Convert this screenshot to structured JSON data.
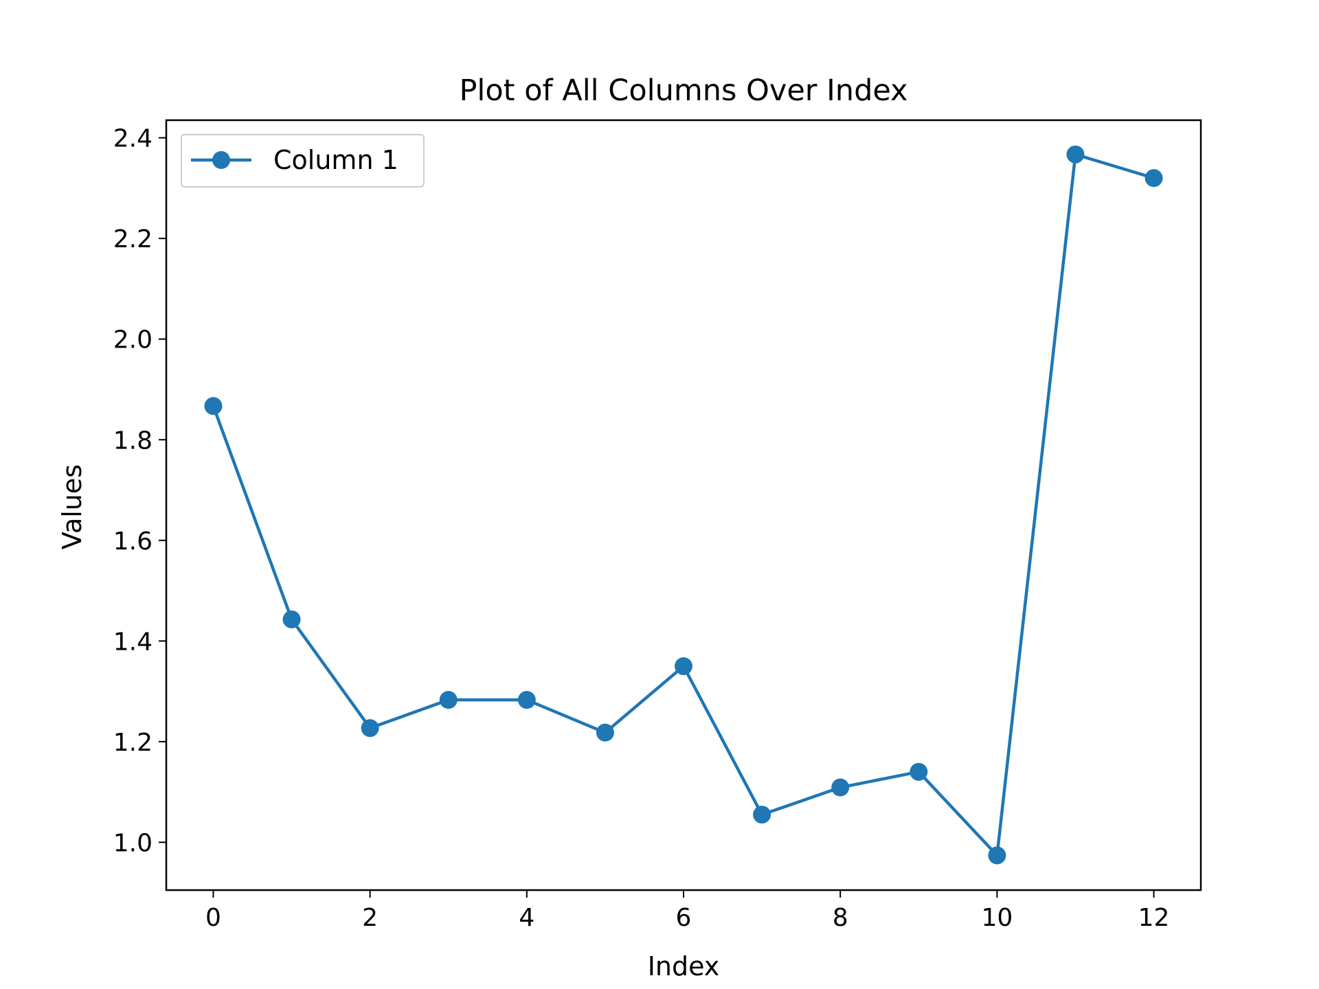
{
  "chart_data": {
    "type": "line",
    "title": "Plot of All Columns Over Index",
    "xlabel": "Index",
    "ylabel": "Values",
    "xlim": [
      -0.6,
      12.6
    ],
    "ylim": [
      0.905,
      2.435
    ],
    "xticks": [
      0,
      2,
      4,
      6,
      8,
      10,
      12
    ],
    "xtick_labels": [
      "0",
      "2",
      "4",
      "6",
      "8",
      "10",
      "12"
    ],
    "yticks": [
      1.0,
      1.2,
      1.4,
      1.6,
      1.8,
      2.0,
      2.2,
      2.4
    ],
    "ytick_labels": [
      "1.0",
      "1.2",
      "1.4",
      "1.6",
      "1.8",
      "2.0",
      "2.2",
      "2.4"
    ],
    "grid": false,
    "legend_position": "top-left",
    "x": [
      0,
      1,
      2,
      3,
      4,
      5,
      6,
      7,
      8,
      9,
      10,
      11,
      12
    ],
    "series": [
      {
        "name": "Column 1",
        "color": "#1f77b4",
        "marker": "circle",
        "values": [
          1.867,
          1.443,
          1.227,
          1.283,
          1.283,
          1.218,
          1.35,
          1.055,
          1.109,
          1.14,
          0.974,
          2.367,
          2.32
        ]
      }
    ]
  }
}
